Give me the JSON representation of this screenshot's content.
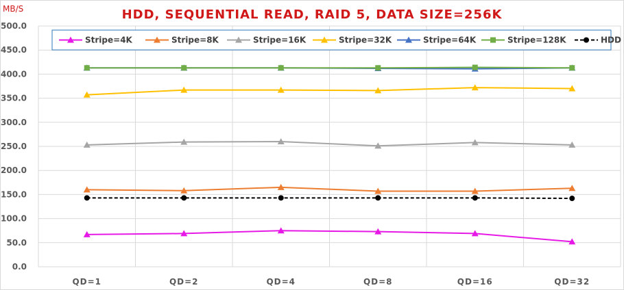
{
  "chart_data": {
    "type": "line",
    "title": "HDD, SEQUENTIAL READ, RAID 5, DATA SIZE=256K",
    "unit_label": "MB/S",
    "categories": [
      "QD=1",
      "QD=2",
      "QD=4",
      "QD=8",
      "QD=16",
      "QD=32"
    ],
    "ylim": [
      0,
      500
    ],
    "yticks": [
      "0.0",
      "50.0",
      "100.0",
      "150.0",
      "200.0",
      "250.0",
      "300.0",
      "350.0",
      "400.0",
      "450.0",
      "500.0"
    ],
    "grid": true,
    "legend_position": "top",
    "series": [
      {
        "name": "Stripe=4K",
        "color": "#e619e6",
        "marker": "triangle",
        "dash": false,
        "values": [
          67,
          69,
          75,
          73,
          69,
          52
        ]
      },
      {
        "name": "Stripe=8K",
        "color": "#ed7d31",
        "marker": "triangle",
        "dash": false,
        "values": [
          160,
          158,
          165,
          157,
          157,
          163
        ]
      },
      {
        "name": "Stripe=16K",
        "color": "#a5a5a5",
        "marker": "triangle",
        "dash": false,
        "values": [
          253,
          259,
          260,
          251,
          258,
          253
        ]
      },
      {
        "name": "Stripe=32K",
        "color": "#ffc000",
        "marker": "triangle",
        "dash": false,
        "values": [
          357,
          367,
          367,
          366,
          372,
          370
        ]
      },
      {
        "name": "Stripe=64K",
        "color": "#4472c4",
        "marker": "triangle",
        "dash": false,
        "values": [
          413,
          413,
          413,
          412,
          411,
          413
        ]
      },
      {
        "name": "Stripe=128K",
        "color": "#70ad47",
        "marker": "square",
        "dash": false,
        "values": [
          413,
          413,
          413,
          413,
          414,
          413
        ]
      },
      {
        "name": "HDD",
        "color": "#000000",
        "marker": "circle",
        "dash": true,
        "values": [
          143,
          143,
          143,
          143,
          143,
          142
        ]
      }
    ]
  }
}
